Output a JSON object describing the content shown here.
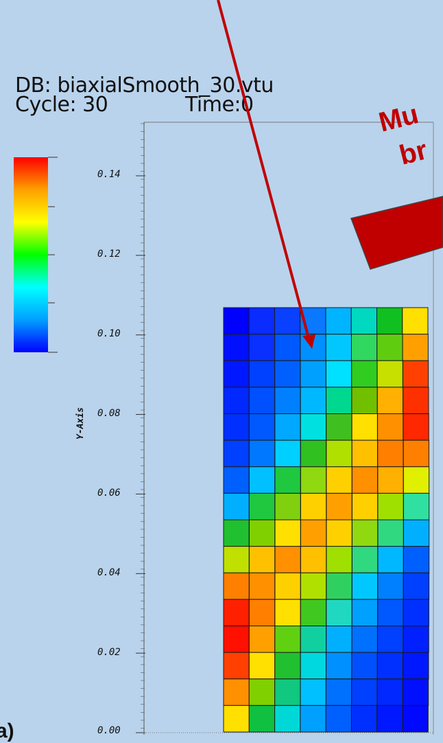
{
  "header": {
    "db_line": "DB: biaxialSmooth_30.vtu",
    "cycle_line": "Cycle: 30",
    "time_line": "Time:0"
  },
  "colorbar": {
    "stops": [
      "#0000ff",
      "#00a0ff",
      "#00ffff",
      "#00ff00",
      "#ffff00",
      "#ffa000",
      "#ff0000"
    ]
  },
  "y_axis": {
    "title": "Y-Axis",
    "ticks": [
      "0.14",
      "0.12",
      "0.10",
      "0.08",
      "0.06",
      "0.04",
      "0.02",
      "0.00"
    ]
  },
  "annotation": {
    "line1": "Mu",
    "line2": "br",
    "color": "#c00000"
  },
  "bottom_fragment": "a)",
  "mesh": {
    "cols": 8,
    "rows": 16,
    "cells": [
      [
        "#0000ff",
        "#0a2cff",
        "#0a40ff",
        "#0a78ff",
        "#00b4ff",
        "#00d8c0",
        "#10c020",
        "#ffe000"
      ],
      [
        "#0010ff",
        "#0a30ff",
        "#0058ff",
        "#0090ff",
        "#00c8ff",
        "#30d860",
        "#60cc10",
        "#ffa000"
      ],
      [
        "#0018ff",
        "#0040ff",
        "#0060ff",
        "#00a0ff",
        "#00e0ff",
        "#30cc20",
        "#c8e000",
        "#ff4000"
      ],
      [
        "#0028ff",
        "#0050ff",
        "#0080ff",
        "#00b8ff",
        "#00d890",
        "#70c000",
        "#ffb000",
        "#ff3000"
      ],
      [
        "#0030ff",
        "#0058ff",
        "#00a8ff",
        "#00e0e0",
        "#40c020",
        "#ffe000",
        "#ff9000",
        "#ff2800"
      ],
      [
        "#0040ff",
        "#0078ff",
        "#00d0ff",
        "#30c020",
        "#b0e000",
        "#ffc000",
        "#ff8000",
        "#ff8000"
      ],
      [
        "#0060ff",
        "#00c0ff",
        "#20c840",
        "#90d810",
        "#ffd000",
        "#ff9000",
        "#ffb000",
        "#e0f000"
      ],
      [
        "#00b0ff",
        "#20c840",
        "#80d010",
        "#ffd000",
        "#ffa000",
        "#ffd000",
        "#a0e000",
        "#30e0a0"
      ],
      [
        "#20c030",
        "#80d000",
        "#ffe000",
        "#ffa000",
        "#ffd000",
        "#90d810",
        "#30d880",
        "#00b0ff"
      ],
      [
        "#c0e000",
        "#ffc000",
        "#ff9000",
        "#ffc000",
        "#a0e000",
        "#30d880",
        "#00b8ff",
        "#0060ff"
      ],
      [
        "#ff8000",
        "#ff9000",
        "#ffd000",
        "#b0e000",
        "#30d060",
        "#00c8ff",
        "#0080ff",
        "#0040ff"
      ],
      [
        "#ff2000",
        "#ff8000",
        "#ffe000",
        "#40c820",
        "#20d8c0",
        "#00a0ff",
        "#0058ff",
        "#0030ff"
      ],
      [
        "#ff1000",
        "#ffa000",
        "#60d010",
        "#10d0a0",
        "#00b0ff",
        "#0070ff",
        "#0040ff",
        "#0020ff"
      ],
      [
        "#ff4000",
        "#ffe000",
        "#20c030",
        "#00d8e0",
        "#0090ff",
        "#0050ff",
        "#0030ff",
        "#0018ff"
      ],
      [
        "#ff9000",
        "#80d000",
        "#10c880",
        "#00c0ff",
        "#0070ff",
        "#0040ff",
        "#0028ff",
        "#0010ff"
      ],
      [
        "#ffe000",
        "#10c040",
        "#00d8d8",
        "#00a0ff",
        "#0060ff",
        "#0030ff",
        "#0018ff",
        "#0008ff"
      ]
    ]
  }
}
